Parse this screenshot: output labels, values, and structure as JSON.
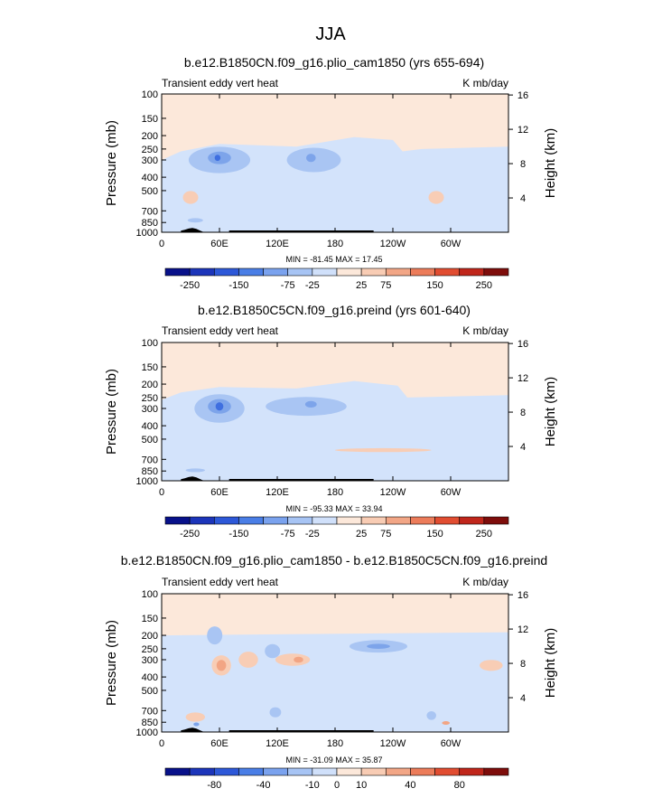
{
  "figure_title": "JJA",
  "colors": {
    "plot_bg": "#fce8da",
    "light_blue": "#d3e3fb",
    "mid_blue": "#a9c5f3",
    "deep_blue": "#7da4ea",
    "core_blue": "#3f6fe0",
    "warm1": "#f8cdb5",
    "warm2": "#f2a584",
    "terrain": "#000000",
    "label_bar": [
      "#08118a",
      "#1c35ba",
      "#2d58d8",
      "#4a7ee6",
      "#7aa2ee",
      "#a7c4f4",
      "#d0e0fa",
      "#fce8da",
      "#f8ccb4",
      "#f2a686",
      "#ec7c5a",
      "#e14d31",
      "#c0261b",
      "#7e0d0b"
    ]
  },
  "chart_data": [
    {
      "type": "heatmap",
      "title": "b.e12.B1850CN.f09_g16.plio_cam1850 (yrs 655-694)",
      "left_label": "Transient eddy vert heat",
      "right_label": "K mb/day",
      "ylabel": "Pressure (mb)",
      "y2label": "Height (km)",
      "x_ticks": [
        "0",
        "60E",
        "120E",
        "180",
        "120W",
        "60W"
      ],
      "x_tick_values": [
        0,
        60,
        120,
        180,
        240,
        300
      ],
      "xlim": [
        0,
        360
      ],
      "y_ticks": [
        "100",
        "150",
        "200",
        "250",
        "300",
        "400",
        "500",
        "700",
        "850",
        "1000"
      ],
      "y_tick_values": [
        100,
        150,
        200,
        250,
        300,
        400,
        500,
        700,
        850,
        1000
      ],
      "ylim": [
        1000,
        100
      ],
      "y2_ticks": [
        "4",
        "8",
        "12",
        "16"
      ],
      "y2_tick_values": [
        4,
        8,
        12,
        16
      ],
      "min_max": "MIN = -81.45   MAX = 17.45",
      "colorbar_labels": [
        "-250",
        "-150",
        "-75",
        "-25",
        "25",
        "75",
        "150",
        "250"
      ],
      "colorbar_levels": [
        -250,
        -150,
        -75,
        -25,
        25,
        75,
        150,
        250
      ]
    },
    {
      "type": "heatmap",
      "title": "b.e12.B1850C5CN.f09_g16.preind (yrs 601-640)",
      "left_label": "Transient eddy vert heat",
      "right_label": "K mb/day",
      "ylabel": "Pressure (mb)",
      "y2label": "Height (km)",
      "x_ticks": [
        "0",
        "60E",
        "120E",
        "180",
        "120W",
        "60W"
      ],
      "x_tick_values": [
        0,
        60,
        120,
        180,
        240,
        300
      ],
      "xlim": [
        0,
        360
      ],
      "y_ticks": [
        "100",
        "150",
        "200",
        "250",
        "300",
        "400",
        "500",
        "700",
        "850",
        "1000"
      ],
      "y_tick_values": [
        100,
        150,
        200,
        250,
        300,
        400,
        500,
        700,
        850,
        1000
      ],
      "ylim": [
        1000,
        100
      ],
      "y2_ticks": [
        "4",
        "8",
        "12",
        "16"
      ],
      "y2_tick_values": [
        4,
        8,
        12,
        16
      ],
      "min_max": "MIN = -95.33   MAX = 33.94",
      "colorbar_labels": [
        "-250",
        "-150",
        "-75",
        "-25",
        "25",
        "75",
        "150",
        "250"
      ],
      "colorbar_levels": [
        -250,
        -150,
        -75,
        -25,
        25,
        75,
        150,
        250
      ]
    },
    {
      "type": "heatmap",
      "title": "b.e12.B1850CN.f09_g16.plio_cam1850 - b.e12.B1850C5CN.f09_g16.preind",
      "left_label": "Transient eddy vert heat",
      "right_label": "K mb/day",
      "ylabel": "Pressure (mb)",
      "y2label": "Height (km)",
      "x_ticks": [
        "0",
        "60E",
        "120E",
        "180",
        "120W",
        "60W"
      ],
      "x_tick_values": [
        0,
        60,
        120,
        180,
        240,
        300
      ],
      "xlim": [
        0,
        360
      ],
      "y_ticks": [
        "100",
        "150",
        "200",
        "250",
        "300",
        "400",
        "500",
        "700",
        "850",
        "1000"
      ],
      "y_tick_values": [
        100,
        150,
        200,
        250,
        300,
        400,
        500,
        700,
        850,
        1000
      ],
      "ylim": [
        1000,
        100
      ],
      "y2_ticks": [
        "4",
        "8",
        "12",
        "16"
      ],
      "y2_tick_values": [
        4,
        8,
        12,
        16
      ],
      "min_max": "MIN = -31.09   MAX = 35.87",
      "colorbar_labels": [
        "-80",
        "-40",
        "-10",
        "0",
        "10",
        "40",
        "80"
      ],
      "colorbar_levels": [
        -80,
        -40,
        -10,
        0,
        10,
        40,
        80
      ]
    }
  ]
}
